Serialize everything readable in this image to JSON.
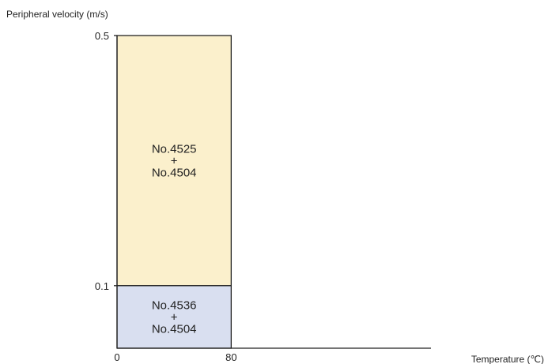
{
  "chart_data": {
    "type": "region",
    "ylabel": "Peripheral velocity (m/s)",
    "xlabel": "Temperature (℃)",
    "x_ticks": [
      {
        "value": 0,
        "label": "0"
      },
      {
        "value": 80,
        "label": "80"
      }
    ],
    "y_ticks": [
      {
        "value": 0.1,
        "label": "0.1"
      },
      {
        "value": 0.5,
        "label": "0.5"
      }
    ],
    "xlim": [
      0,
      220
    ],
    "ylim": [
      0,
      0.5
    ],
    "regions": [
      {
        "x_range": [
          0,
          80
        ],
        "y_range": [
          0.1,
          0.5
        ],
        "label_lines": [
          "No.4525",
          "+",
          "No.4504"
        ],
        "color": "#fbf0cc"
      },
      {
        "x_range": [
          0,
          80
        ],
        "y_range": [
          0,
          0.1
        ],
        "label_lines": [
          "No.4536",
          "+",
          "No.4504"
        ],
        "color": "#d9dff0"
      }
    ]
  }
}
